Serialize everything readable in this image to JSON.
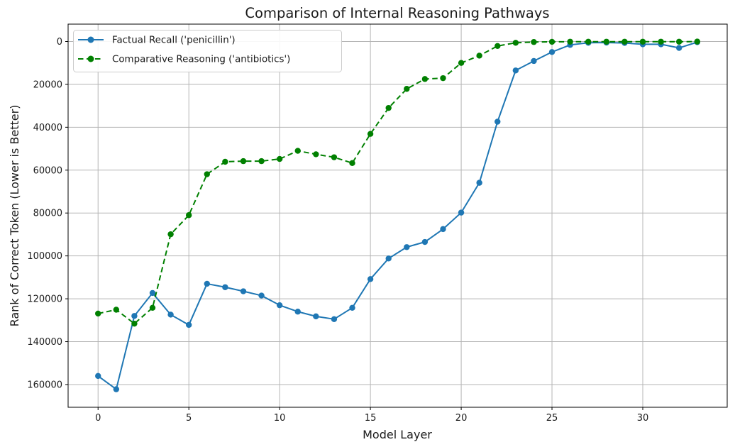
{
  "figure": {
    "background_color": "#ffffff",
    "grid_color": "#b5b5b5",
    "spine_color": "#000000",
    "text_color": "#1a1a1a"
  },
  "chart_data": {
    "type": "line",
    "title": "Comparison of Internal Reasoning Pathways",
    "xlabel": "Model Layer",
    "ylabel": "Rank of Correct Token (Lower is Better)",
    "grid": true,
    "legend_position": "upper left",
    "y_axis_inverted": true,
    "xlim": [
      -1.65,
      34.65
    ],
    "ylim_top_to_bottom": [
      -8100,
      170600
    ],
    "xticks": [
      0,
      5,
      10,
      15,
      20,
      25,
      30
    ],
    "yticks": [
      0,
      20000,
      40000,
      60000,
      80000,
      100000,
      120000,
      140000,
      160000
    ],
    "x": [
      0,
      1,
      2,
      3,
      4,
      5,
      6,
      7,
      8,
      9,
      10,
      11,
      12,
      13,
      14,
      15,
      16,
      17,
      18,
      19,
      20,
      21,
      22,
      23,
      24,
      25,
      26,
      27,
      28,
      29,
      30,
      31,
      32,
      33
    ],
    "series": [
      {
        "name": "Factual Recall ('penicillin')",
        "color": "#1f77b4",
        "line_style": "solid",
        "marker": "circle",
        "values": [
          156000,
          162200,
          128000,
          117300,
          127400,
          132200,
          113000,
          114600,
          116500,
          118500,
          123000,
          126000,
          128200,
          129500,
          124200,
          110800,
          101200,
          95900,
          93500,
          87500,
          79800,
          65900,
          37400,
          13500,
          9100,
          4900,
          1600,
          600,
          500,
          700,
          1300,
          1300,
          3000,
          300
        ]
      },
      {
        "name": "Comparative Reasoning ('antibiotics')",
        "color": "#008000",
        "line_style": "dashed",
        "marker": "circle",
        "values": [
          126900,
          125100,
          131600,
          124200,
          89900,
          81000,
          61900,
          56100,
          55800,
          55800,
          54800,
          51000,
          52600,
          54000,
          56700,
          43100,
          31000,
          22100,
          17500,
          17100,
          10000,
          6600,
          2100,
          600,
          250,
          150,
          100,
          100,
          100,
          100,
          100,
          100,
          100,
          50
        ]
      }
    ]
  }
}
